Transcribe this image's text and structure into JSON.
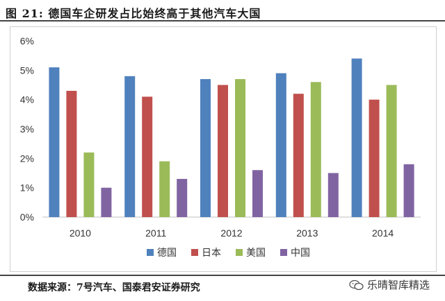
{
  "figure_title": "图  21:  德国车企研发占比始终高于其他汽车大国",
  "source_text": "数据来源：7号汽车、国泰君安证券研究",
  "watermark_text": "乐晴智库精选",
  "chart_data": {
    "type": "bar",
    "categories": [
      "2010",
      "2011",
      "2012",
      "2013",
      "2014"
    ],
    "series": [
      {
        "name": "德国",
        "color": "#4f81bd",
        "values": [
          5.1,
          4.8,
          4.7,
          4.9,
          5.4
        ]
      },
      {
        "name": "日本",
        "color": "#c0504d",
        "values": [
          4.3,
          4.1,
          4.5,
          4.2,
          4.0
        ]
      },
      {
        "name": "美国",
        "color": "#9bbb59",
        "values": [
          2.2,
          1.9,
          4.7,
          4.6,
          4.5
        ]
      },
      {
        "name": "中国",
        "color": "#8064a2",
        "values": [
          1.0,
          1.3,
          1.6,
          1.5,
          1.8
        ]
      }
    ],
    "ylim": [
      0,
      6
    ],
    "yticks": [
      "0%",
      "1%",
      "2%",
      "3%",
      "4%",
      "5%",
      "6%"
    ],
    "y_unit": "%",
    "grid": false,
    "legend_position": "bottom"
  }
}
